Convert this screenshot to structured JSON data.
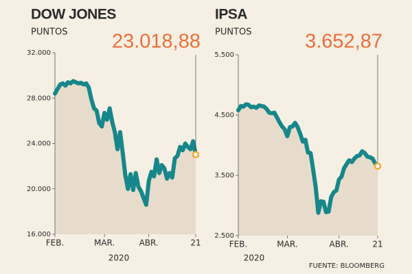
{
  "chart_data": [
    {
      "type": "line",
      "title": "DOW JONES",
      "subtitle": "PUNTOS",
      "xlabel": "2020",
      "color": "#16878a",
      "values": [
        28400,
        28800,
        29200,
        29300,
        29100,
        29400,
        29300,
        29500,
        29400,
        29300,
        29350,
        29200,
        29300,
        28900,
        27900,
        27100,
        26900,
        25800,
        25500,
        26700,
        26100,
        27100,
        25900,
        25000,
        23500,
        25000,
        23200,
        21200,
        20000,
        21300,
        19900,
        21400,
        20200,
        19800,
        19200,
        18600,
        20700,
        21500,
        21100,
        22600,
        21400,
        22100,
        21800,
        20900,
        21400,
        21000,
        22700,
        22900,
        23700,
        23400,
        24000,
        23700,
        23500,
        24200,
        23018.88
      ],
      "value_labels": [
        null,
        null,
        null,
        null,
        null,
        null,
        null,
        null,
        null,
        null,
        null,
        null,
        null,
        null,
        null,
        null,
        null,
        null,
        null,
        null,
        null,
        null,
        null,
        null,
        null,
        null,
        null,
        null,
        null,
        null,
        null,
        null,
        null,
        null,
        null,
        null,
        null,
        null,
        null,
        null,
        null,
        null,
        null,
        null,
        null,
        null,
        null,
        null,
        null,
        null,
        null,
        null,
        null,
        null,
        "23.018,88"
      ],
      "xlim": [
        0,
        54
      ],
      "xticks": [
        {
          "value": 0,
          "label": "FEB."
        },
        {
          "value": 19,
          "label": "MAR."
        },
        {
          "value": 36,
          "label": "ABR."
        },
        {
          "value": 54,
          "label": "21"
        }
      ],
      "ylim": [
        16000,
        32000
      ],
      "yticks": [
        {
          "value": 16000,
          "label": "16.000"
        },
        {
          "value": 20000,
          "label": "20.000"
        },
        {
          "value": 24000,
          "label": "24.000"
        },
        {
          "value": 28000,
          "label": "28.000"
        },
        {
          "value": 32000,
          "label": "32.000"
        }
      ]
    },
    {
      "type": "line",
      "title": "IPSA",
      "subtitle": "PUNTOS",
      "xlabel": "2020",
      "color": "#16878a",
      "values": [
        4580,
        4650,
        4640,
        4680,
        4670,
        4630,
        4640,
        4620,
        4660,
        4650,
        4640,
        4600,
        4540,
        4530,
        4540,
        4460,
        4380,
        4310,
        4260,
        4150,
        4300,
        4310,
        4370,
        4300,
        4190,
        4060,
        4090,
        3880,
        3870,
        3600,
        3300,
        2880,
        3070,
        3060,
        2890,
        2900,
        3140,
        3220,
        3250,
        3430,
        3480,
        3620,
        3690,
        3750,
        3720,
        3780,
        3820,
        3830,
        3900,
        3870,
        3810,
        3800,
        3780,
        3700,
        3652.87
      ],
      "value_labels": [
        null,
        null,
        null,
        null,
        null,
        null,
        null,
        null,
        null,
        null,
        null,
        null,
        null,
        null,
        null,
        null,
        null,
        null,
        null,
        null,
        null,
        null,
        null,
        null,
        null,
        null,
        null,
        null,
        null,
        null,
        null,
        null,
        null,
        null,
        null,
        null,
        null,
        null,
        null,
        null,
        null,
        null,
        null,
        null,
        null,
        null,
        null,
        null,
        null,
        null,
        null,
        null,
        null,
        null,
        "3.652,87"
      ],
      "xlim": [
        0,
        54
      ],
      "xticks": [
        {
          "value": 0,
          "label": "FEB."
        },
        {
          "value": 19,
          "label": "MAR."
        },
        {
          "value": 39,
          "label": "ABR."
        },
        {
          "value": 54,
          "label": "21"
        }
      ],
      "ylim": [
        2500,
        5500
      ],
      "yticks": [
        {
          "value": 2500,
          "label": "2.500"
        },
        {
          "value": 3500,
          "label": "3.500"
        },
        {
          "value": 4500,
          "label": "4.500"
        },
        {
          "value": 5500,
          "label": "5.500"
        }
      ]
    }
  ],
  "source": "FUENTE: BLOOMBERG"
}
